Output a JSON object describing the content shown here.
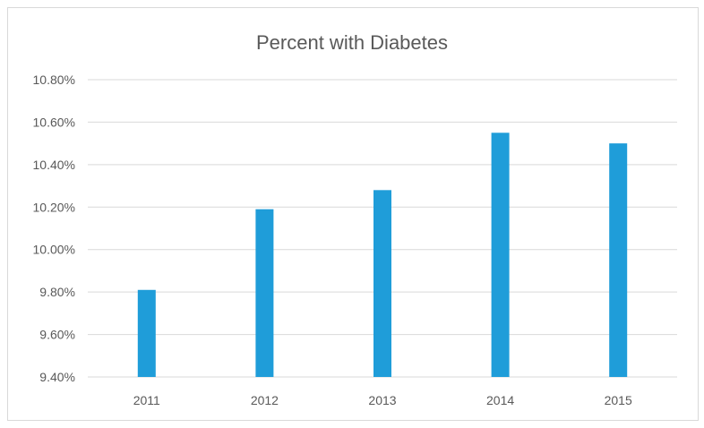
{
  "chart_data": {
    "type": "bar",
    "title": "Percent with Diabetes",
    "xlabel": "",
    "ylabel": "",
    "categories": [
      "2011",
      "2012",
      "2013",
      "2014",
      "2015"
    ],
    "values": [
      9.81,
      10.19,
      10.28,
      10.55,
      10.5
    ],
    "ylim": [
      9.4,
      10.8
    ],
    "yticks": [
      9.4,
      9.6,
      9.8,
      10.0,
      10.2,
      10.4,
      10.6,
      10.8
    ],
    "ytick_labels": [
      "9.40%",
      "9.60%",
      "9.80%",
      "10.00%",
      "10.20%",
      "10.40%",
      "10.60%",
      "10.80%"
    ],
    "grid": "horizontal",
    "legend": "none",
    "bar_color": "#1f9dd9",
    "grid_color": "#d9d9d9",
    "text_color": "#595959"
  }
}
